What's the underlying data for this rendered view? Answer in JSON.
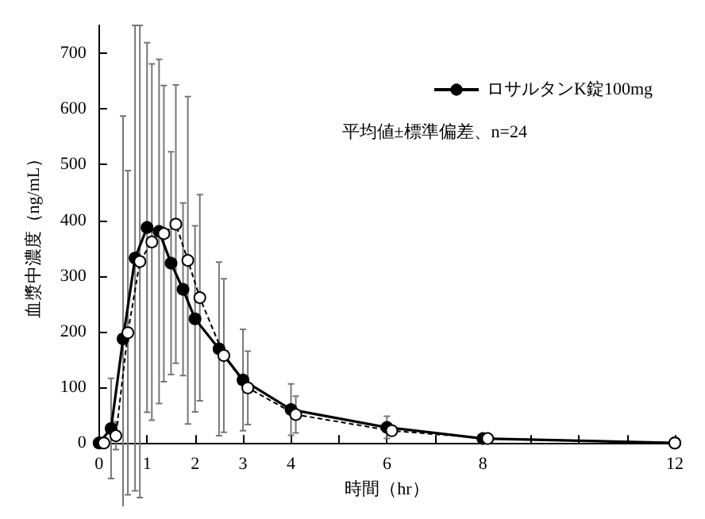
{
  "chart_data": {
    "type": "line",
    "xlabel": "時間（hr）",
    "ylabel": "血漿中濃度（ng/mL）",
    "annotations": [
      "平均値±標準偏差、n=24"
    ],
    "xlim": [
      0,
      12
    ],
    "ylim": [
      0,
      750
    ],
    "xticks": [
      0,
      1,
      2,
      3,
      4,
      {
        "value": 5,
        "label": null
      },
      6,
      {
        "value": 7,
        "label": null
      },
      8,
      {
        "value": 9,
        "label": null
      },
      {
        "value": 10,
        "label": null
      },
      {
        "value": 11,
        "label": null
      },
      12
    ],
    "yticks": [
      0,
      100,
      200,
      300,
      400,
      500,
      600,
      700
    ],
    "series": [
      {
        "name": "ロサルタンK錠100mg",
        "color": "#000000",
        "line_style": "solid",
        "x": [
          0,
          0.25,
          0.5,
          0.75,
          1,
          1.25,
          1.5,
          1.75,
          2,
          2.5,
          3,
          4,
          6,
          8,
          12
        ],
        "values": [
          0,
          26,
          187,
          332,
          387,
          380,
          323,
          276,
          223,
          169,
          113,
          60,
          28,
          8,
          0
        ],
        "errors": [
          null,
          90,
          400,
          418,
          332,
          309,
          200,
          155,
          167,
          156,
          91,
          46,
          20,
          null,
          null
        ]
      },
      {
        "color": "#000000",
        "line_style": "dashed",
        "x": [
          0.1,
          0.35,
          0.6,
          0.85,
          1.1,
          1.35,
          1.6,
          1.85,
          2.1,
          2.6,
          3.1,
          4.1,
          6.1,
          8.1,
          12
        ],
        "values": [
          0,
          13,
          198,
          326,
          361,
          376,
          393,
          328,
          261,
          157,
          99,
          51,
          22,
          8,
          0
        ],
        "errors": [
          null,
          25,
          291,
          424,
          320,
          266,
          250,
          294,
          185,
          138,
          66,
          33,
          null,
          null,
          null
        ]
      }
    ],
    "marker": "circle",
    "legend": "top right",
    "grid": false
  }
}
